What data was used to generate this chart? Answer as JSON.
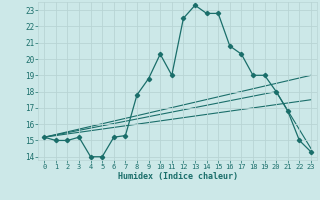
{
  "xlabel": "Humidex (Indice chaleur)",
  "background_color": "#cce8e8",
  "grid_color": "#b8d4d4",
  "line_color": "#1a6e6a",
  "xlim": [
    -0.5,
    23.5
  ],
  "ylim": [
    13.8,
    23.5
  ],
  "yticks": [
    14,
    15,
    16,
    17,
    18,
    19,
    20,
    21,
    22,
    23
  ],
  "xticks": [
    0,
    1,
    2,
    3,
    4,
    5,
    6,
    7,
    8,
    9,
    10,
    11,
    12,
    13,
    14,
    15,
    16,
    17,
    18,
    19,
    20,
    21,
    22,
    23
  ],
  "series1_x": [
    0,
    1,
    2,
    3,
    4,
    5,
    6,
    7,
    8,
    9,
    10,
    11,
    12,
    13,
    14,
    15,
    16,
    17,
    18,
    19,
    20,
    21,
    22,
    23
  ],
  "series1_y": [
    15.2,
    15.0,
    15.0,
    15.2,
    14.0,
    14.0,
    15.2,
    15.3,
    17.8,
    18.8,
    20.3,
    19.0,
    22.5,
    23.3,
    22.8,
    22.8,
    20.8,
    20.3,
    19.0,
    19.0,
    18.0,
    16.8,
    15.0,
    14.3
  ],
  "line2_x": [
    0,
    23
  ],
  "line2_y": [
    15.2,
    19.0
  ],
  "line3_x": [
    0,
    23
  ],
  "line3_y": [
    15.2,
    17.5
  ],
  "line4_x": [
    0,
    20,
    23
  ],
  "line4_y": [
    15.2,
    18.0,
    14.5
  ]
}
